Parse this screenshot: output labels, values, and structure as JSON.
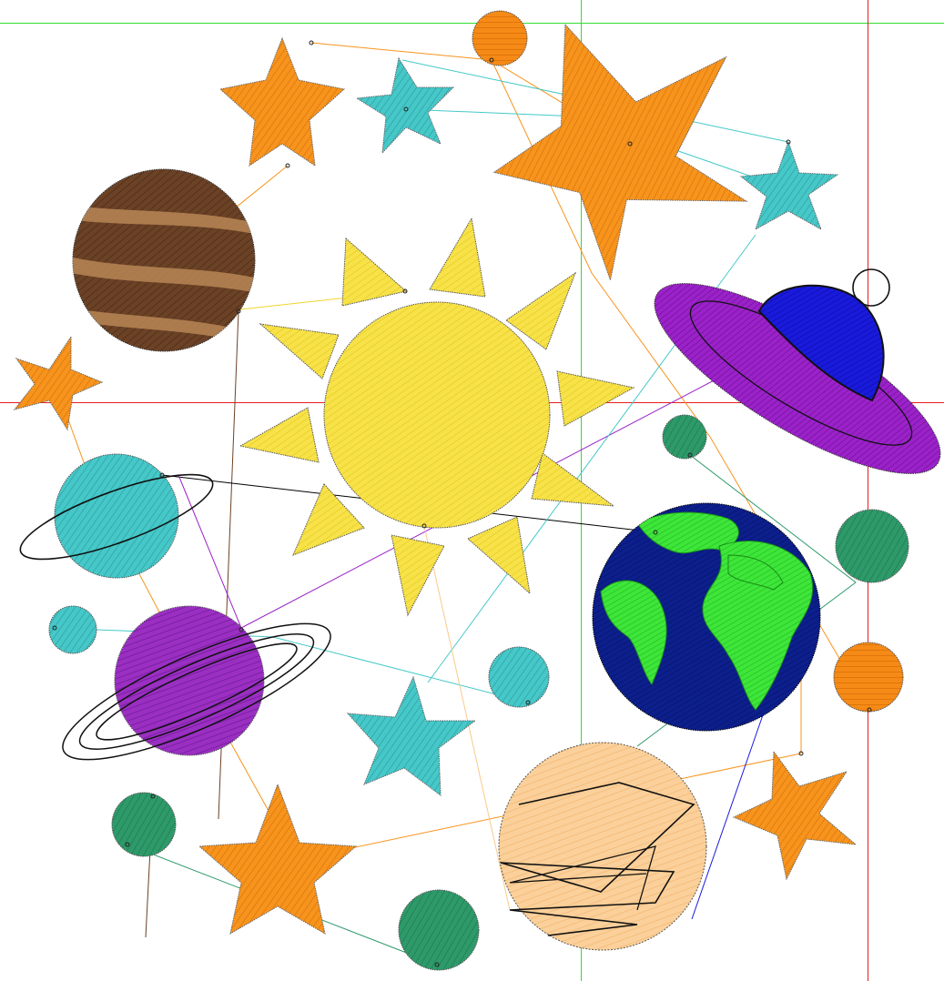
{
  "design": {
    "colors": {
      "guide_green": "#32dc32",
      "guide_red": "#e61e1e",
      "star_orange": "#f7941d",
      "star_cyan": "#46c8c8",
      "sun_yellow": "#f5e03c",
      "ray_yellow": "#f2d52a",
      "jupiter_brown": "#6b4226",
      "jupiter_band": "#a97a4c",
      "cyan_planet": "#47c4cf",
      "saturn_purple": "#8e24b4",
      "green_planet": "#2e9a6a",
      "orange_planet": "#f58a16",
      "earth_ocean": "#0c1f8c",
      "earth_land": "#3ee63a",
      "peach_planet": "#fbc98a",
      "ufo_purple": "#9b22c8",
      "ufo_dome": "#1a1adb",
      "stitch_black": "#000000"
    },
    "icons": [
      "star-icon",
      "sun-icon",
      "planet-icon",
      "ringed-planet-icon",
      "earth-icon",
      "ufo-icon"
    ]
  }
}
